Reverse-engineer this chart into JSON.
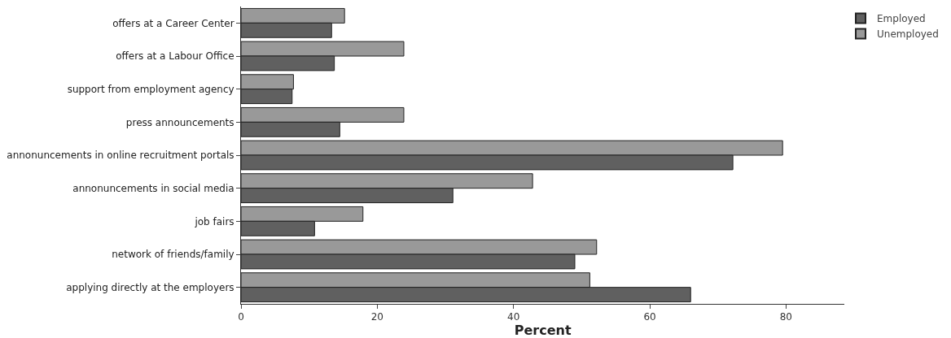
{
  "chart_data": {
    "type": "bar",
    "orientation": "horizontal",
    "xlabel": "Percent",
    "categories": [
      "offers at a Career Center",
      "offers at a Labour Office",
      "support from employment agency",
      "press announcements",
      "annonuncements in online recruitment portals",
      "annonuncements in social media",
      "job fairs",
      "network of friends/family",
      "applying directly at the employers"
    ],
    "series": [
      {
        "name": "Employed",
        "color": "#606060",
        "values": [
          13.3,
          13.7,
          7.5,
          14.5,
          72.2,
          31.1,
          10.8,
          49,
          66
        ]
      },
      {
        "name": "Unemployed",
        "color": "#999999",
        "values": [
          15.2,
          23.9,
          7.7,
          23.9,
          79.5,
          42.8,
          17.9,
          52.2,
          51.2
        ]
      }
    ],
    "xlim": [
      0,
      88.6
    ],
    "xticks": [
      0,
      20,
      40,
      60,
      80
    ],
    "grid": false,
    "legend": "top right"
  }
}
